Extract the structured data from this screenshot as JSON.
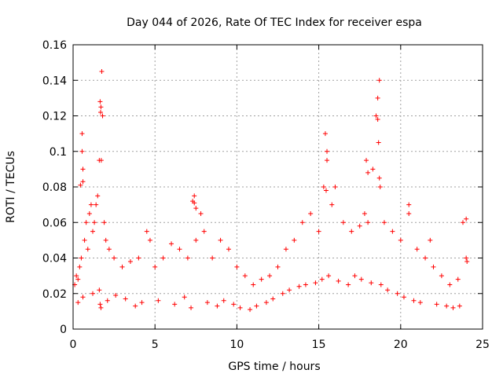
{
  "chart_data": {
    "type": "scatter",
    "title": "Day 044 of 2026, Rate Of TEC Index for receiver espa",
    "xlabel": "GPS time / hours",
    "ylabel": "ROTI / TECUs",
    "xlim": [
      0,
      25
    ],
    "ylim": [
      0,
      0.16
    ],
    "xticks": [
      0,
      5,
      10,
      15,
      20,
      25
    ],
    "xtick_labels": [
      "0",
      "5",
      "10",
      "15",
      "20",
      "25"
    ],
    "yticks": [
      0,
      0.02,
      0.04,
      0.06,
      0.08,
      0.1,
      0.12,
      0.14,
      0.16
    ],
    "ytick_labels": [
      "0",
      "0.02",
      "0.04",
      "0.06",
      "0.08",
      "0.1",
      "0.12",
      "0.14",
      "0.16"
    ],
    "grid": true,
    "marker": "+",
    "marker_color": "#ff0000",
    "series": [
      {
        "name": "ROTI",
        "x": [
          0.1,
          0.2,
          0.3,
          0.4,
          0.5,
          0.55,
          0.6,
          0.7,
          0.8,
          0.9,
          1.0,
          1.1,
          1.2,
          1.3,
          1.4,
          1.5,
          1.6,
          1.7,
          1.75,
          1.8,
          1.9,
          2.0,
          2.2,
          2.5,
          3.0,
          3.5,
          4.0,
          4.5,
          4.7,
          5.0,
          5.5,
          6.0,
          6.5,
          7.0,
          7.3,
          7.4,
          7.5,
          7.8,
          8.0,
          8.5,
          9.0,
          9.5,
          10.0,
          10.5,
          11.0,
          11.5,
          12.0,
          12.5,
          13.0,
          13.5,
          14.0,
          14.5,
          15.0,
          15.3,
          15.4,
          15.5,
          15.8,
          16.0,
          16.5,
          17.0,
          17.5,
          17.8,
          18.0,
          18.3,
          18.5,
          18.6,
          18.7,
          19.0,
          19.5,
          20.0,
          20.5,
          21.0,
          21.5,
          21.8,
          22.0,
          22.5,
          23.0,
          23.5,
          23.8,
          24.0,
          0.3,
          0.6,
          1.2,
          1.6,
          1.65,
          1.7,
          2.1,
          2.6,
          3.2,
          3.8,
          4.2,
          5.2,
          6.2,
          6.8,
          7.2,
          8.2,
          8.8,
          9.2,
          9.8,
          10.2,
          10.8,
          11.2,
          11.8,
          12.2,
          12.8,
          13.2,
          13.8,
          14.2,
          14.8,
          15.2,
          15.6,
          16.2,
          16.8,
          17.2,
          17.6,
          18.2,
          18.8,
          19.2,
          19.8,
          20.2,
          20.8,
          21.2,
          22.2,
          22.8,
          23.2,
          23.6,
          1.65,
          1.68,
          1.72,
          15.45,
          15.5,
          18.6,
          18.65,
          18.7,
          18.75,
          0.55,
          0.6,
          0.45,
          7.4,
          7.5,
          17.9,
          18.0,
          20.5,
          24.0,
          24.05
        ],
        "y": [
          0.025,
          0.03,
          0.028,
          0.035,
          0.04,
          0.11,
          0.09,
          0.05,
          0.06,
          0.045,
          0.065,
          0.07,
          0.055,
          0.06,
          0.07,
          0.075,
          0.095,
          0.125,
          0.145,
          0.12,
          0.06,
          0.05,
          0.045,
          0.04,
          0.035,
          0.038,
          0.04,
          0.055,
          0.05,
          0.035,
          0.04,
          0.048,
          0.045,
          0.04,
          0.072,
          0.075,
          0.05,
          0.065,
          0.055,
          0.04,
          0.05,
          0.045,
          0.035,
          0.03,
          0.025,
          0.028,
          0.03,
          0.035,
          0.045,
          0.05,
          0.06,
          0.065,
          0.055,
          0.08,
          0.11,
          0.1,
          0.07,
          0.08,
          0.06,
          0.055,
          0.058,
          0.065,
          0.06,
          0.09,
          0.12,
          0.13,
          0.14,
          0.06,
          0.055,
          0.05,
          0.07,
          0.045,
          0.04,
          0.05,
          0.035,
          0.03,
          0.025,
          0.028,
          0.06,
          0.062,
          0.015,
          0.018,
          0.02,
          0.022,
          0.014,
          0.012,
          0.016,
          0.019,
          0.017,
          0.013,
          0.015,
          0.016,
          0.014,
          0.018,
          0.012,
          0.015,
          0.013,
          0.016,
          0.014,
          0.012,
          0.011,
          0.013,
          0.015,
          0.017,
          0.02,
          0.022,
          0.024,
          0.025,
          0.026,
          0.028,
          0.03,
          0.027,
          0.025,
          0.03,
          0.028,
          0.026,
          0.025,
          0.022,
          0.02,
          0.018,
          0.016,
          0.015,
          0.014,
          0.013,
          0.012,
          0.013,
          0.128,
          0.122,
          0.095,
          0.078,
          0.095,
          0.118,
          0.105,
          0.085,
          0.08,
          0.1,
          0.083,
          0.081,
          0.071,
          0.068,
          0.095,
          0.088,
          0.065,
          0.04,
          0.038
        ]
      }
    ]
  }
}
